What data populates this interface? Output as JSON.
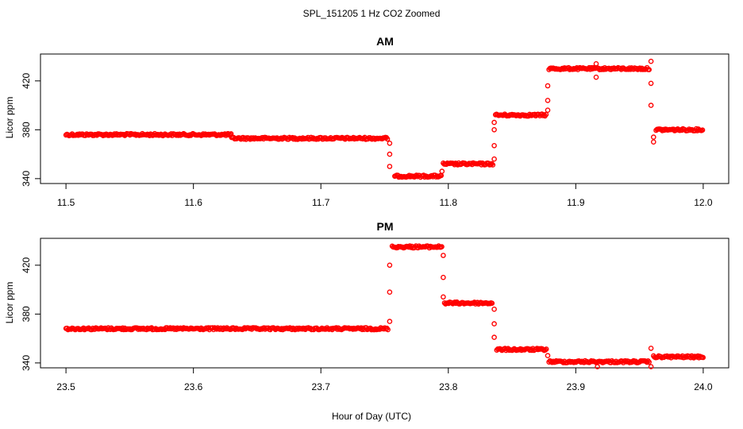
{
  "figure": {
    "title": "SPL_151205  1 Hz CO2 Zoomed",
    "xlabel": "Hour of Day (UTC)"
  },
  "chart_data": [
    {
      "type": "scatter",
      "title": "AM",
      "xlabel": "",
      "ylabel": "Licor ppm",
      "xlim": [
        11.48,
        12.02
      ],
      "ylim": [
        336,
        442
      ],
      "xticks": [
        11.5,
        11.6,
        11.7,
        11.8,
        11.9,
        12.0
      ],
      "xtick_labels": [
        "11.5",
        "11.6",
        "11.7",
        "11.8",
        "11.9",
        "12.0"
      ],
      "yticks": [
        340,
        380,
        420
      ],
      "ytick_labels": [
        "340",
        "380",
        "420"
      ],
      "grid": false,
      "marker": "open-circle",
      "color": "#ff0000",
      "segments": [
        {
          "x0": 11.5,
          "x1": 11.63,
          "y": 376
        },
        {
          "x0": 11.63,
          "x1": 11.753,
          "y": 373
        },
        {
          "x0": 11.758,
          "x1": 11.795,
          "y": 342
        },
        {
          "x0": 11.796,
          "x1": 11.835,
          "y": 352
        },
        {
          "x0": 11.837,
          "x1": 11.877,
          "y": 392
        },
        {
          "x0": 11.879,
          "x1": 11.958,
          "y": 430
        },
        {
          "x0": 11.963,
          "x1": 12.0,
          "y": 380
        }
      ],
      "transition_points": [
        {
          "x": 11.754,
          "y": 369
        },
        {
          "x": 11.754,
          "y": 360
        },
        {
          "x": 11.754,
          "y": 350
        },
        {
          "x": 11.795,
          "y": 346
        },
        {
          "x": 11.836,
          "y": 356
        },
        {
          "x": 11.836,
          "y": 367
        },
        {
          "x": 11.836,
          "y": 380
        },
        {
          "x": 11.836,
          "y": 386
        },
        {
          "x": 11.878,
          "y": 396
        },
        {
          "x": 11.878,
          "y": 404
        },
        {
          "x": 11.878,
          "y": 416
        },
        {
          "x": 11.916,
          "y": 434
        },
        {
          "x": 11.916,
          "y": 423
        },
        {
          "x": 11.959,
          "y": 436
        },
        {
          "x": 11.959,
          "y": 418
        },
        {
          "x": 11.959,
          "y": 400
        },
        {
          "x": 11.961,
          "y": 374
        },
        {
          "x": 11.961,
          "y": 370
        }
      ]
    },
    {
      "type": "scatter",
      "title": "PM",
      "xlabel": "",
      "ylabel": "Licor ppm",
      "xlim": [
        23.48,
        24.02
      ],
      "ylim": [
        336,
        442
      ],
      "xticks": [
        23.5,
        23.6,
        23.7,
        23.8,
        23.9,
        24.0
      ],
      "xtick_labels": [
        "23.5",
        "23.6",
        "23.7",
        "23.8",
        "23.9",
        "24.0"
      ],
      "yticks": [
        340,
        380,
        420
      ],
      "ytick_labels": [
        "340",
        "380",
        "420"
      ],
      "grid": false,
      "marker": "open-circle",
      "color": "#ff0000",
      "segments": [
        {
          "x0": 23.5,
          "x1": 23.753,
          "y": 368
        },
        {
          "x0": 23.756,
          "x1": 23.795,
          "y": 435
        },
        {
          "x0": 23.797,
          "x1": 23.835,
          "y": 389
        },
        {
          "x0": 23.838,
          "x1": 23.877,
          "y": 351
        },
        {
          "x0": 23.879,
          "x1": 23.958,
          "y": 341
        },
        {
          "x0": 23.961,
          "x1": 24.0,
          "y": 345
        }
      ],
      "transition_points": [
        {
          "x": 23.754,
          "y": 374
        },
        {
          "x": 23.754,
          "y": 398
        },
        {
          "x": 23.754,
          "y": 420
        },
        {
          "x": 23.796,
          "y": 428
        },
        {
          "x": 23.796,
          "y": 410
        },
        {
          "x": 23.796,
          "y": 394
        },
        {
          "x": 23.836,
          "y": 384
        },
        {
          "x": 23.836,
          "y": 372
        },
        {
          "x": 23.836,
          "y": 361
        },
        {
          "x": 23.878,
          "y": 346
        },
        {
          "x": 23.917,
          "y": 337
        },
        {
          "x": 23.959,
          "y": 337
        },
        {
          "x": 23.959,
          "y": 352
        }
      ]
    }
  ]
}
